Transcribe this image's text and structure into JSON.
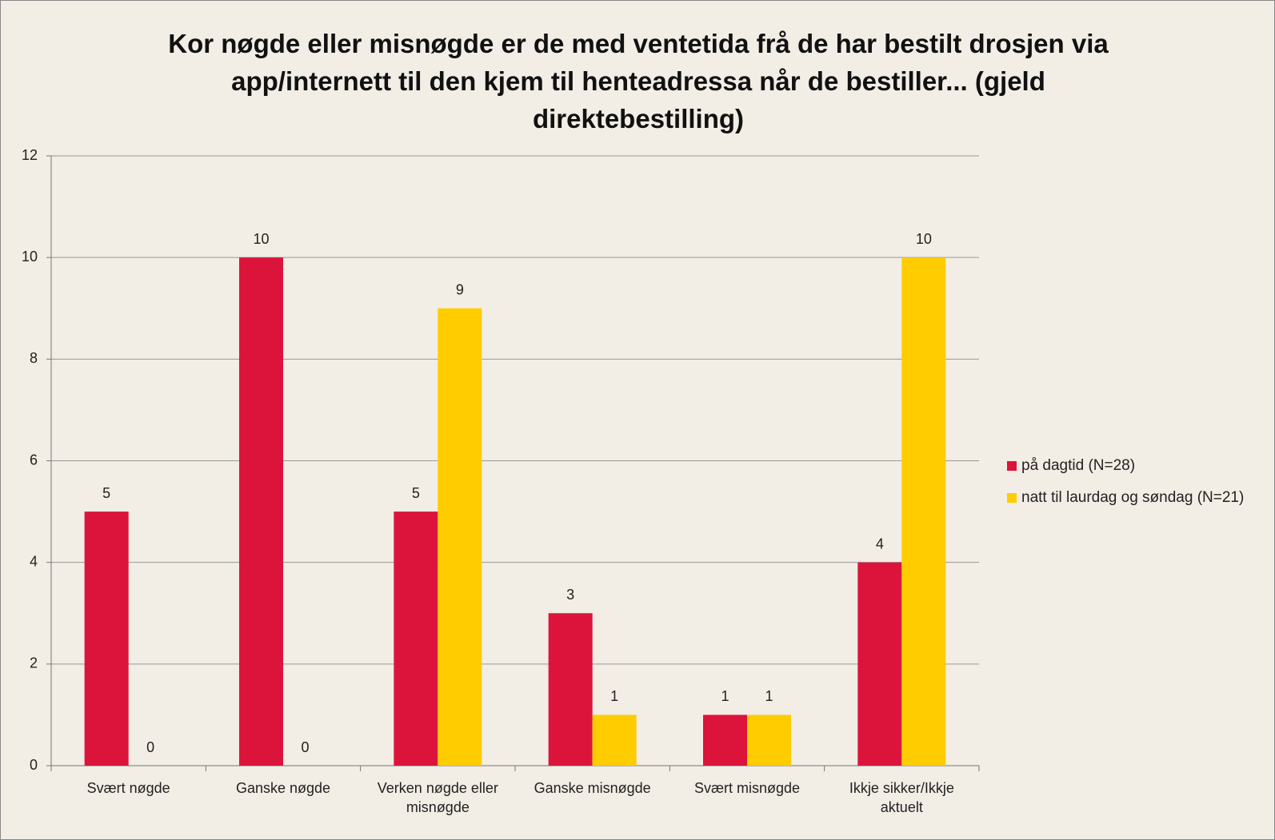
{
  "chart_data": {
    "type": "bar",
    "title": "Kor nøgde eller misnøgde er de med ventetida frå de har bestilt drosjen via app/internett til den kjem til henteadressa når de bestiller... (gjeld direktebestilling)",
    "categories": [
      "Svært nøgde",
      "Ganske nøgde",
      "Verken nøgde eller misnøgde",
      "Ganske misnøgde",
      "Svært misnøgde",
      "Ikkje sikker/Ikkje aktuelt"
    ],
    "series": [
      {
        "name": "på dagtid (N=28)",
        "color": "#dc143c",
        "values": [
          5,
          10,
          5,
          3,
          1,
          4
        ]
      },
      {
        "name": "natt til laurdag og søndag (N=21)",
        "color": "#ffcc00",
        "values": [
          0,
          0,
          9,
          1,
          1,
          10
        ]
      }
    ],
    "ylim": [
      0,
      12
    ],
    "yticks": [
      0,
      2,
      4,
      6,
      8,
      10,
      12
    ],
    "grid": true,
    "legend": "right"
  }
}
